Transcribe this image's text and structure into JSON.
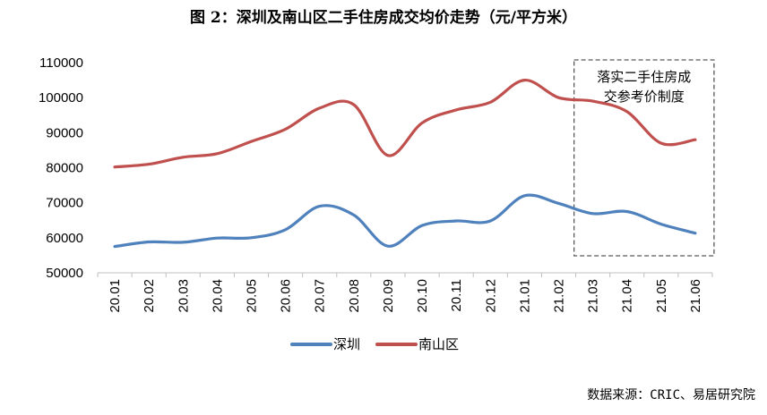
{
  "chart_data": {
    "type": "line",
    "title": "图 2：深圳及南山区二手住房成交均价走势（元/平方米）",
    "categories": [
      "20.01",
      "20.02",
      "20.03",
      "20.04",
      "20.05",
      "20.06",
      "20.07",
      "20.08",
      "20.09",
      "20.10",
      "20.11",
      "20.12",
      "21.01",
      "21.02",
      "21.03",
      "21.04",
      "21.05",
      "21.06"
    ],
    "series": [
      {
        "name": "深圳",
        "color": "#4F81BD",
        "values": [
          57500,
          58800,
          58700,
          59900,
          60000,
          62300,
          69000,
          66500,
          57600,
          63500,
          64800,
          64800,
          72000,
          69800,
          66900,
          67500,
          63900,
          61300
        ]
      },
      {
        "name": "南山区",
        "color": "#C0504D",
        "values": [
          80200,
          81000,
          83000,
          84000,
          87500,
          91000,
          97000,
          98000,
          83500,
          92800,
          96500,
          98700,
          105000,
          100000,
          99000,
          96000,
          87000,
          88000
        ]
      }
    ],
    "ylim": [
      50000,
      110000
    ],
    "yticks": [
      50000,
      60000,
      70000,
      80000,
      90000,
      100000,
      110000
    ],
    "xlabel": "",
    "ylabel": "",
    "grid": false,
    "legend": "bottom",
    "annotation": {
      "lines": [
        "落实二手住房成",
        "交参考价制度"
      ],
      "from": "21.03",
      "to": "21.06"
    },
    "source": "数据来源：CRIC、易居研究院"
  }
}
